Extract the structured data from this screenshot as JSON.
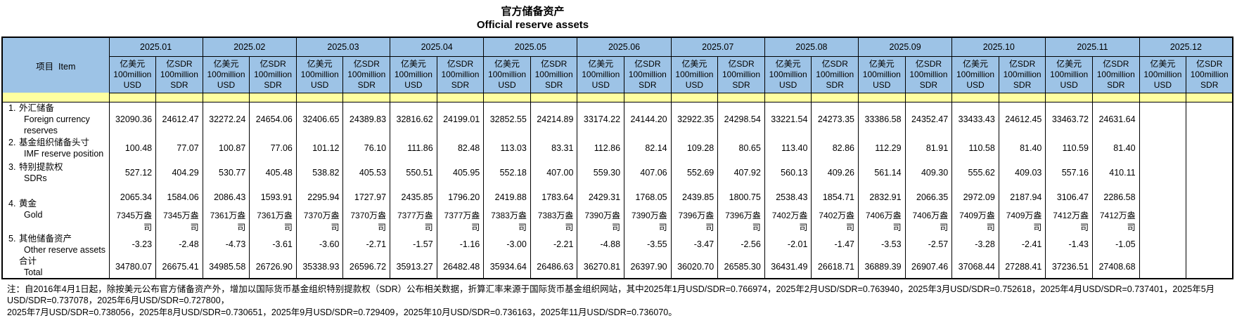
{
  "title": {
    "zh": "官方储备资产",
    "en": "Official reserve assets"
  },
  "colors": {
    "header_blue": "#9DC3E6",
    "band_yellow": "#FFFFA0",
    "border": "#000000"
  },
  "table": {
    "item_header": "项目  Item",
    "months": [
      "2025.01",
      "2025.02",
      "2025.03",
      "2025.04",
      "2025.05",
      "2025.06",
      "2025.07",
      "2025.08",
      "2025.09",
      "2025.10",
      "2025.11",
      "2025.12"
    ],
    "unit_usd": [
      "亿美元",
      "100million",
      "USD"
    ],
    "unit_sdr": [
      "亿SDR",
      "100million",
      "SDR"
    ],
    "rows": [
      {
        "num": "1.",
        "zh": "外汇储备",
        "en": "Foreign currency reserves",
        "values": [
          "32090.36",
          "24612.47",
          "32272.24",
          "24654.06",
          "32406.65",
          "24389.83",
          "32816.62",
          "24199.01",
          "32852.55",
          "24214.89",
          "33174.22",
          "24144.20",
          "32922.35",
          "24298.54",
          "33221.54",
          "24273.35",
          "33386.58",
          "24352.47",
          "33433.43",
          "24612.45",
          "33463.72",
          "24631.64",
          "",
          ""
        ]
      },
      {
        "num": "2.",
        "zh": "基金组织储备头寸",
        "en": "IMF reserve position",
        "values": [
          "100.48",
          "77.07",
          "100.87",
          "77.06",
          "101.12",
          "76.10",
          "111.86",
          "82.48",
          "113.03",
          "83.31",
          "112.86",
          "82.14",
          "109.28",
          "80.65",
          "113.40",
          "82.86",
          "112.29",
          "81.91",
          "110.58",
          "81.40",
          "110.59",
          "81.40",
          "",
          ""
        ]
      },
      {
        "num": "3.",
        "zh": "特别提款权",
        "en": "SDRs",
        "values": [
          "527.12",
          "404.29",
          "530.77",
          "405.48",
          "538.82",
          "405.53",
          "550.51",
          "405.95",
          "552.18",
          "407.00",
          "559.30",
          "407.06",
          "552.69",
          "407.92",
          "560.13",
          "409.26",
          "561.14",
          "409.30",
          "555.62",
          "409.03",
          "557.16",
          "410.11",
          "",
          ""
        ]
      },
      {
        "num": "4.",
        "zh": "黄金",
        "en": "Gold",
        "values": [
          "2065.34",
          "1584.06",
          "2086.43",
          "1593.91",
          "2295.94",
          "1727.97",
          "2435.85",
          "1796.20",
          "2419.88",
          "1783.64",
          "2429.31",
          "1768.05",
          "2439.85",
          "1800.75",
          "2538.43",
          "1854.71",
          "2832.91",
          "2066.35",
          "2972.09",
          "2187.94",
          "3106.47",
          "2286.58",
          "",
          ""
        ],
        "ounces": [
          "7345万盎司",
          "7345万盎司",
          "7361万盎司",
          "7361万盎司",
          "7370万盎司",
          "7370万盎司",
          "7377万盎司",
          "7377万盎司",
          "7383万盎司",
          "7383万盎司",
          "7390万盎司",
          "7390万盎司",
          "7396万盎司",
          "7396万盎司",
          "7402万盎司",
          "7402万盎司",
          "7406万盎司",
          "7406万盎司",
          "7409万盎司",
          "7409万盎司",
          "7412万盎司",
          "7412万盎司",
          "",
          ""
        ]
      },
      {
        "num": "5.",
        "zh": "其他储备资产",
        "en": "Other reserve assets",
        "values": [
          "-3.23",
          "-2.48",
          "-4.73",
          "-3.61",
          "-3.60",
          "-2.71",
          "-1.57",
          "-1.16",
          "-3.00",
          "-2.21",
          "-4.88",
          "-3.55",
          "-3.47",
          "-2.56",
          "-2.01",
          "-1.47",
          "-3.53",
          "-2.57",
          "-3.28",
          "-2.41",
          "-1.43",
          "-1.05",
          "",
          ""
        ]
      },
      {
        "num": "",
        "zh": "合计",
        "en": "Total",
        "values": [
          "34780.07",
          "26675.41",
          "34985.58",
          "26726.90",
          "35338.93",
          "26596.72",
          "35913.27",
          "26482.48",
          "35934.64",
          "26486.63",
          "36270.81",
          "26397.90",
          "36020.70",
          "26585.30",
          "36431.49",
          "26618.71",
          "36889.39",
          "26907.46",
          "37068.44",
          "27288.41",
          "37236.51",
          "27408.68",
          "",
          ""
        ]
      }
    ]
  },
  "footnote": {
    "line1": "注：自2016年4月1日起，除按美元公布官方储备资产外，增加以国际货币基金组织特别提款权（SDR）公布相关数据，折算汇率来源于国际货币基金组织网站，其中2025年1月USD/SDR=0.766974，2025年2月USD/SDR=0.763940，2025年3月USD/SDR=0.752618，2025年4月USD/SDR=0.737401，2025年5月USD/SDR=0.737078，2025年6月USD/SDR=0.727800，",
    "line2": "2025年7月USD/SDR=0.738056，2025年8月USD/SDR=0.730651，2025年9月USD/SDR=0.729409，2025年10月USD/SDR=0.736163，2025年11月USD/SDR=0.736070。"
  }
}
